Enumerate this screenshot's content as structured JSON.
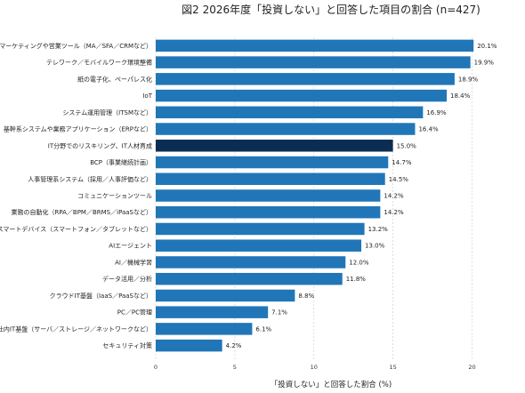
{
  "chart_data": {
    "type": "bar",
    "orientation": "horizontal",
    "title": "図2 2026年度「投資しない」と回答した項目の割合 (n=427)",
    "xlabel": "「投資しない」と回答した割合 (%)",
    "ylabel": "",
    "xlim": [
      0,
      22
    ],
    "xticks": [
      0,
      5,
      10,
      15,
      20
    ],
    "grid": "vertical-dashed",
    "value_suffix": "%",
    "bar_color": "#2176b8",
    "highlight_color": "#0b2d52",
    "highlight_index": 6,
    "categories": [
      "マーケティングや営業ツール（MA／SFA／CRMなど）",
      "テレワーク／モバイルワーク環境整備",
      "紙の電子化、ペーパレス化",
      "IoT",
      "システム運用管理（ITSMなど）",
      "基幹系システムや業務アプリケーション（ERPなど）",
      "IT分野でのリスキリング、IT人材育成",
      "BCP（事業継続計画）",
      "人事管理系システム（採用／人事評価など）",
      "コミュニケーションツール",
      "業務の自動化（RPA／BPM／BRMS／iPaaSなど）",
      "スマートデバイス（スマートフォン／タブレットなど）",
      "AIエージェント",
      "AI／機械学習",
      "データ活用／分析",
      "クラウドIT基盤（IaaS／PaaSなど）",
      "PC／PC管理",
      "社内IT基盤（サーバ／ストレージ／ネットワークなど）",
      "セキュリティ対策"
    ],
    "values": [
      20.1,
      19.9,
      18.9,
      18.4,
      16.9,
      16.4,
      15.0,
      14.7,
      14.5,
      14.2,
      14.2,
      13.2,
      13.0,
      12.0,
      11.8,
      8.8,
      7.1,
      6.1,
      4.2
    ]
  }
}
